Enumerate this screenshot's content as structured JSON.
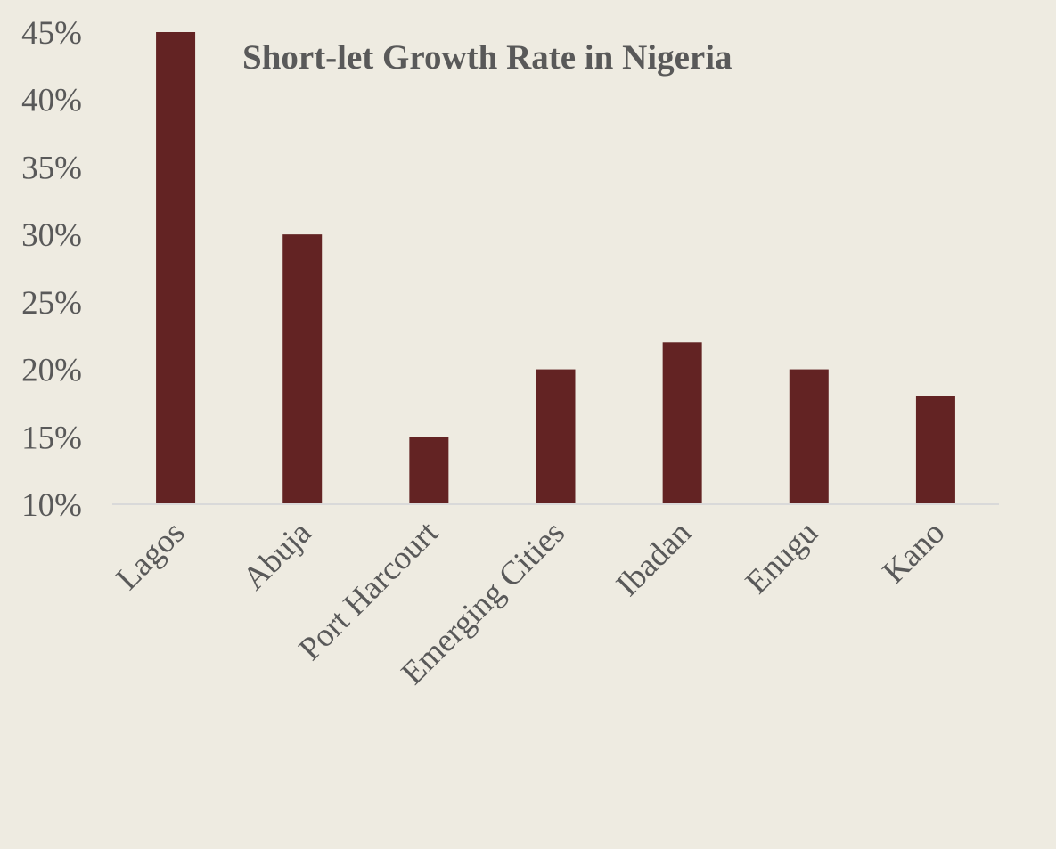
{
  "chart_data": {
    "type": "bar",
    "title": "Short-let Growth Rate in Nigeria",
    "xlabel": "",
    "ylabel": "",
    "categories": [
      "Lagos",
      "Abuja",
      "Port Harcourt",
      "Emerging Cities",
      "Ibadan",
      "Enugu",
      "Kano"
    ],
    "values": [
      45,
      30,
      15,
      20,
      22,
      20,
      18
    ],
    "ylim": [
      10,
      45
    ],
    "yticks": [
      10,
      15,
      20,
      25,
      30,
      35,
      40,
      45
    ],
    "ytick_labels": [
      "10%",
      "15%",
      "20%",
      "25%",
      "30%",
      "35%",
      "40%",
      "45%"
    ],
    "grid": false,
    "legend": "none",
    "colors": {
      "bar": "#632323",
      "background": "#EEEBE1",
      "axis": "#D9D9D9",
      "text": "#595959"
    }
  }
}
